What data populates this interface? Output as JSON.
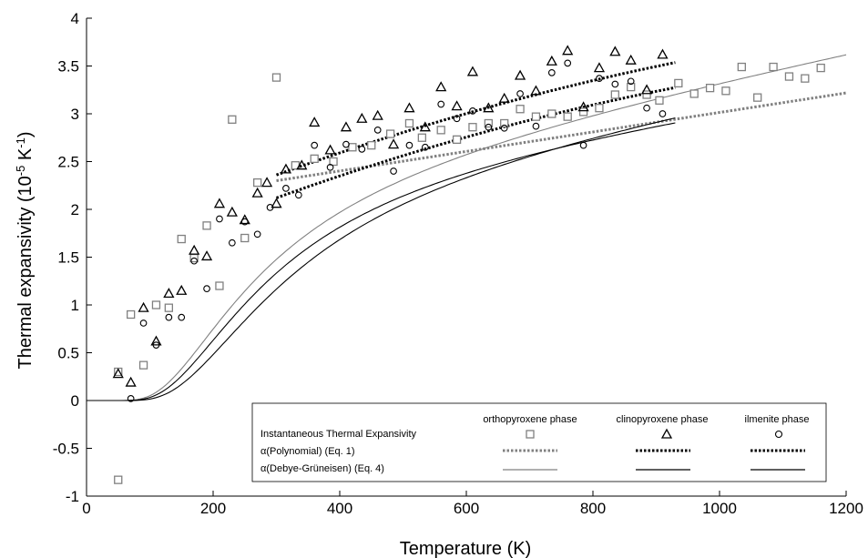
{
  "chart_data": {
    "type": "scatter",
    "xlabel": "Temperature (K)",
    "ylabel_parts": {
      "prefix": "Thermal expansivity (10",
      "exp1": "-5",
      "mid": " K",
      "exp2": "-1",
      "suffix": ")"
    },
    "xlim": [
      0,
      1200
    ],
    "ylim": [
      -1,
      4
    ],
    "xticks": [
      0,
      200,
      400,
      600,
      800,
      1000,
      1200
    ],
    "yticks": [
      -1,
      -0.5,
      0,
      0.5,
      1,
      1.5,
      2,
      2.5,
      3,
      3.5,
      4
    ],
    "ytick_labels": [
      "-1",
      "-0.5",
      "0",
      "0.5",
      "1",
      "1.5",
      "2",
      "2.5",
      "3",
      "3.5",
      "4"
    ],
    "grid": false,
    "legend_placement": "bottom-right",
    "legend": {
      "col_headers": [
        "orthopyroxene phase",
        "clinopyroxene phase",
        "ilmenite phase"
      ],
      "row_labels": [
        "Instantaneous Thermal Expansivity",
        "α(Polynomial) (Eq. 1)",
        "α(Debye-Grüneisen) (Eq. 4)"
      ]
    },
    "series": [
      {
        "phase": "orthopyroxene phase",
        "marker": "square",
        "color": "#808080",
        "points": [
          [
            50,
            -0.83
          ],
          [
            50,
            0.3
          ],
          [
            70,
            0.9
          ],
          [
            90,
            0.37
          ],
          [
            110,
            1.0
          ],
          [
            130,
            0.97
          ],
          [
            150,
            1.69
          ],
          [
            170,
            1.49
          ],
          [
            190,
            1.83
          ],
          [
            210,
            1.2
          ],
          [
            230,
            2.94
          ],
          [
            250,
            1.7
          ],
          [
            270,
            2.28
          ],
          [
            300,
            3.38
          ],
          [
            330,
            2.46
          ],
          [
            360,
            2.53
          ],
          [
            390,
            2.5
          ],
          [
            420,
            2.65
          ],
          [
            450,
            2.67
          ],
          [
            480,
            2.79
          ],
          [
            510,
            2.9
          ],
          [
            530,
            2.75
          ],
          [
            560,
            2.83
          ],
          [
            585,
            2.73
          ],
          [
            610,
            2.86
          ],
          [
            635,
            2.9
          ],
          [
            660,
            2.9
          ],
          [
            685,
            3.05
          ],
          [
            710,
            2.97
          ],
          [
            735,
            3.0
          ],
          [
            760,
            2.97
          ],
          [
            785,
            3.02
          ],
          [
            810,
            3.06
          ],
          [
            835,
            3.2
          ],
          [
            860,
            3.28
          ],
          [
            885,
            3.2
          ],
          [
            905,
            3.14
          ],
          [
            935,
            3.32
          ],
          [
            960,
            3.21
          ],
          [
            985,
            3.27
          ],
          [
            1010,
            3.24
          ],
          [
            1035,
            3.49
          ],
          [
            1060,
            3.17
          ],
          [
            1085,
            3.49
          ],
          [
            1110,
            3.39
          ],
          [
            1135,
            3.37
          ],
          [
            1160,
            3.48
          ]
        ]
      },
      {
        "phase": "clinopyroxene phase",
        "marker": "triangle",
        "color": "#000000",
        "points": [
          [
            50,
            0.28
          ],
          [
            70,
            0.19
          ],
          [
            90,
            0.97
          ],
          [
            110,
            0.62
          ],
          [
            130,
            1.12
          ],
          [
            150,
            1.15
          ],
          [
            170,
            1.57
          ],
          [
            190,
            1.51
          ],
          [
            210,
            2.06
          ],
          [
            230,
            1.97
          ],
          [
            250,
            1.89
          ],
          [
            270,
            2.17
          ],
          [
            285,
            2.28
          ],
          [
            300,
            2.06
          ],
          [
            315,
            2.42
          ],
          [
            340,
            2.46
          ],
          [
            360,
            2.91
          ],
          [
            385,
            2.62
          ],
          [
            410,
            2.86
          ],
          [
            435,
            2.95
          ],
          [
            460,
            2.98
          ],
          [
            485,
            2.68
          ],
          [
            510,
            3.06
          ],
          [
            535,
            2.86
          ],
          [
            560,
            3.28
          ],
          [
            585,
            3.08
          ],
          [
            610,
            3.44
          ],
          [
            635,
            3.06
          ],
          [
            660,
            3.16
          ],
          [
            685,
            3.4
          ],
          [
            710,
            3.24
          ],
          [
            735,
            3.55
          ],
          [
            760,
            3.66
          ],
          [
            785,
            3.07
          ],
          [
            810,
            3.48
          ],
          [
            835,
            3.65
          ],
          [
            860,
            3.56
          ],
          [
            885,
            3.25
          ],
          [
            910,
            3.62
          ]
        ]
      },
      {
        "phase": "ilmenite phase",
        "marker": "circle",
        "color": "#000000",
        "points": [
          [
            70,
            0.02
          ],
          [
            90,
            0.81
          ],
          [
            110,
            0.58
          ],
          [
            130,
            0.87
          ],
          [
            150,
            0.87
          ],
          [
            170,
            1.46
          ],
          [
            190,
            1.17
          ],
          [
            210,
            1.9
          ],
          [
            230,
            1.65
          ],
          [
            250,
            1.87
          ],
          [
            270,
            1.74
          ],
          [
            290,
            2.02
          ],
          [
            315,
            2.22
          ],
          [
            335,
            2.15
          ],
          [
            360,
            2.67
          ],
          [
            385,
            2.44
          ],
          [
            410,
            2.68
          ],
          [
            435,
            2.63
          ],
          [
            460,
            2.83
          ],
          [
            485,
            2.4
          ],
          [
            510,
            2.67
          ],
          [
            535,
            2.65
          ],
          [
            560,
            3.1
          ],
          [
            585,
            2.95
          ],
          [
            610,
            3.03
          ],
          [
            635,
            2.86
          ],
          [
            660,
            2.85
          ],
          [
            685,
            3.21
          ],
          [
            710,
            2.87
          ],
          [
            735,
            3.43
          ],
          [
            760,
            3.53
          ],
          [
            785,
            2.67
          ],
          [
            810,
            3.37
          ],
          [
            835,
            3.31
          ],
          [
            860,
            3.34
          ],
          [
            885,
            3.06
          ],
          [
            910,
            3.0
          ]
        ]
      }
    ],
    "fits": [
      {
        "phase": "orthopyroxene phase",
        "method": "α(Polynomial) (Eq. 1)",
        "style": "dotted",
        "color": "#808080",
        "params": {
          "a": 2.3,
          "b": 0.00102,
          "c": 0.0,
          "x0": 300,
          "x1": 1200
        }
      },
      {
        "phase": "clinopyroxene phase",
        "method": "α(Polynomial) (Eq. 1)",
        "style": "dotted",
        "color": "#000000",
        "params": {
          "a": 2.36,
          "b": 0.00239,
          "c": -8.3e-07,
          "x0": 300,
          "x1": 930
        }
      },
      {
        "phase": "ilmenite phase",
        "method": "α(Polynomial) (Eq. 1)",
        "style": "dotted",
        "color": "#000000",
        "params": {
          "a": 2.12,
          "b": 0.00238,
          "c": -8.7e-07,
          "x0": 300,
          "x1": 930
        }
      },
      {
        "phase": "orthopyroxene phase",
        "method": "α(Debye-Grüneisen) (Eq. 4)",
        "style": "solid",
        "color": "#808080",
        "params": {
          "A": 2.2,
          "theta": 800,
          "B": 1.7,
          "x1": 1200
        }
      },
      {
        "phase": "clinopyroxene phase",
        "method": "α(Debye-Grüneisen) (Eq. 4)",
        "style": "solid",
        "color": "#000000",
        "params": {
          "A": 2.26,
          "theta": 860,
          "B": 2.45,
          "x1": 930
        }
      },
      {
        "phase": "ilmenite phase",
        "method": "α(Debye-Grüneisen) (Eq. 4)",
        "style": "solid",
        "color": "#000000",
        "params": {
          "A": 2.2,
          "theta": 950,
          "B": 2.0,
          "x1": 930
        }
      }
    ]
  }
}
